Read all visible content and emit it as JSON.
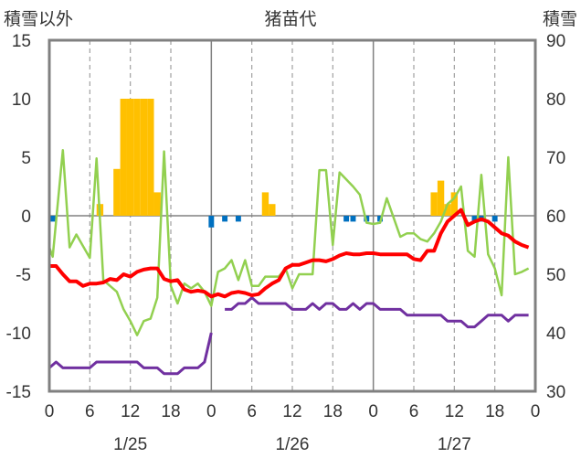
{
  "chart_data": {
    "type": "bar+line",
    "title": "猪苗代",
    "left_axis_label": "積雪以外",
    "right_axis_label": "積雪",
    "left_ylim": [
      -15,
      15
    ],
    "right_ylim": [
      30,
      90
    ],
    "left_ticks": [
      "15",
      "10",
      "5",
      "0",
      "-5",
      "-10",
      "-15"
    ],
    "right_ticks": [
      "90",
      "80",
      "70",
      "60",
      "50",
      "40",
      "30"
    ],
    "x_hour_range": [
      0,
      72
    ],
    "x_tick_labels": [
      "0",
      "6",
      "12",
      "18",
      "0",
      "6",
      "12",
      "18",
      "0",
      "6",
      "12",
      "18",
      "0"
    ],
    "date_labels": [
      "1/25",
      "1/26",
      "1/27"
    ],
    "grid": "dashed vertical at 6h, solid at day boundaries",
    "colors": {
      "snowfall": "#ffc000",
      "precip": "#0070c0",
      "temperature": "#ff0000",
      "wind": "#92d050",
      "snow_depth": "#7030a0",
      "frame": "#808080"
    },
    "snowfall_bars": [
      {
        "h": 7.5,
        "v": 1
      },
      {
        "h": 10,
        "v": 4
      },
      {
        "h": 11,
        "v": 10
      },
      {
        "h": 12,
        "v": 10
      },
      {
        "h": 13,
        "v": 10
      },
      {
        "h": 14,
        "v": 10
      },
      {
        "h": 15,
        "v": 10
      },
      {
        "h": 16,
        "v": 2
      },
      {
        "h": 32,
        "v": 2
      },
      {
        "h": 33,
        "v": 1
      },
      {
        "h": 57,
        "v": 2
      },
      {
        "h": 58,
        "v": 3
      },
      {
        "h": 59,
        "v": 1
      },
      {
        "h": 60,
        "v": 2
      }
    ],
    "precip_bars": [
      {
        "h": 0.5,
        "v": -0.5
      },
      {
        "h": 24,
        "v": -1
      },
      {
        "h": 26,
        "v": -0.5
      },
      {
        "h": 28,
        "v": -0.5
      },
      {
        "h": 44,
        "v": -0.5
      },
      {
        "h": 45,
        "v": -0.5
      },
      {
        "h": 47,
        "v": -0.5
      },
      {
        "h": 49,
        "v": -0.5
      },
      {
        "h": 63,
        "v": -0.5
      },
      {
        "h": 64,
        "v": -0.5
      },
      {
        "h": 66,
        "v": -0.5
      }
    ],
    "temperature": [
      [
        0,
        -4.3
      ],
      [
        1,
        -4.3
      ],
      [
        2,
        -5
      ],
      [
        3,
        -5.6
      ],
      [
        4,
        -5.6
      ],
      [
        5,
        -6
      ],
      [
        6,
        -5.8
      ],
      [
        7,
        -5.8
      ],
      [
        8,
        -5.7
      ],
      [
        9,
        -5.4
      ],
      [
        10,
        -5.5
      ],
      [
        11,
        -5
      ],
      [
        12,
        -5.2
      ],
      [
        13,
        -4.8
      ],
      [
        14,
        -4.6
      ],
      [
        15,
        -4.5
      ],
      [
        16,
        -4.5
      ],
      [
        17,
        -5.4
      ],
      [
        18,
        -5.6
      ],
      [
        19,
        -5.5
      ],
      [
        20,
        -6.3
      ],
      [
        21,
        -6.5
      ],
      [
        22,
        -6.4
      ],
      [
        23,
        -6.5
      ],
      [
        24,
        -6.9
      ],
      [
        25,
        -6.7
      ],
      [
        26,
        -6.9
      ],
      [
        27,
        -6.6
      ],
      [
        28,
        -6.5
      ],
      [
        29,
        -6.6
      ],
      [
        30,
        -6.8
      ],
      [
        31,
        -6.7
      ],
      [
        32,
        -6.2
      ],
      [
        33,
        -5.8
      ],
      [
        34,
        -5.5
      ],
      [
        35,
        -4.5
      ],
      [
        36,
        -4.2
      ],
      [
        37,
        -4.2
      ],
      [
        38,
        -4
      ],
      [
        39,
        -3.8
      ],
      [
        40,
        -3.8
      ],
      [
        41,
        -3.9
      ],
      [
        42,
        -3.7
      ],
      [
        43,
        -3.4
      ],
      [
        44,
        -3.2
      ],
      [
        45,
        -3.3
      ],
      [
        46,
        -3.3
      ],
      [
        47,
        -3.2
      ],
      [
        48,
        -3.2
      ],
      [
        49,
        -3.3
      ],
      [
        50,
        -3.3
      ],
      [
        51,
        -3.3
      ],
      [
        52,
        -3.3
      ],
      [
        53,
        -3.3
      ],
      [
        54,
        -3.7
      ],
      [
        55,
        -3.8
      ],
      [
        56,
        -3
      ],
      [
        57,
        -3
      ],
      [
        58,
        -1.5
      ],
      [
        59,
        -0.5
      ],
      [
        60,
        0
      ],
      [
        61,
        0.5
      ],
      [
        62,
        -0.8
      ],
      [
        63,
        -0.5
      ],
      [
        64,
        -0.3
      ],
      [
        65,
        -0.5
      ],
      [
        66,
        -1
      ],
      [
        67,
        -1.5
      ],
      [
        68,
        -1.7
      ],
      [
        69,
        -2.2
      ],
      [
        70,
        -2.5
      ],
      [
        71,
        -2.7
      ]
    ],
    "wind": [
      [
        0,
        -2.7
      ],
      [
        0.5,
        -3.5
      ],
      [
        2,
        5.6
      ],
      [
        3,
        -2.7
      ],
      [
        4,
        -1.6
      ],
      [
        6,
        -3.6
      ],
      [
        7,
        4.9
      ],
      [
        8,
        -5.5
      ],
      [
        9,
        -6
      ],
      [
        10,
        -6.5
      ],
      [
        11,
        -8
      ],
      [
        12,
        -9
      ],
      [
        13,
        -10.2
      ],
      [
        14,
        -9
      ],
      [
        15,
        -8.8
      ],
      [
        16,
        -7
      ],
      [
        17,
        5.5
      ],
      [
        18,
        -6
      ],
      [
        19,
        -7.5
      ],
      [
        20,
        -5.8
      ],
      [
        21,
        -6.2
      ],
      [
        22,
        -5.8
      ],
      [
        23,
        -6.5
      ],
      [
        24,
        -7.7
      ],
      [
        25,
        -4.8
      ],
      [
        26,
        -4.5
      ],
      [
        27,
        -3.8
      ],
      [
        28,
        -5.5
      ],
      [
        29,
        -3.8
      ],
      [
        30,
        -6
      ],
      [
        31,
        -6
      ],
      [
        32,
        -5.2
      ],
      [
        33,
        -5.2
      ],
      [
        34,
        -5.2
      ],
      [
        35,
        -4.5
      ],
      [
        36,
        -6.2
      ],
      [
        37,
        -5
      ],
      [
        38,
        -5
      ],
      [
        39,
        -5
      ],
      [
        40,
        3.9
      ],
      [
        41,
        3.9
      ],
      [
        42,
        -2.5
      ],
      [
        43,
        3.7
      ],
      [
        45,
        2.5
      ],
      [
        46,
        1.8
      ],
      [
        47,
        -0.6
      ],
      [
        48,
        -0.7
      ],
      [
        49,
        -0.6
      ],
      [
        50,
        1.5
      ],
      [
        52,
        -1.8
      ],
      [
        53,
        -1.5
      ],
      [
        54,
        -1.5
      ],
      [
        55,
        -2
      ],
      [
        56,
        -2.2
      ],
      [
        57,
        -1.5
      ],
      [
        58,
        -0.5
      ],
      [
        59,
        1
      ],
      [
        60,
        1.5
      ],
      [
        61,
        2.5
      ],
      [
        62,
        -3
      ],
      [
        63,
        -3.5
      ],
      [
        64,
        3.5
      ],
      [
        65,
        -3.3
      ],
      [
        66,
        -4.5
      ],
      [
        67,
        -6.8
      ],
      [
        68,
        5
      ],
      [
        69,
        -5
      ],
      [
        70,
        -4.8
      ],
      [
        71,
        -4.5
      ]
    ],
    "snow_depth": [
      [
        0,
        34
      ],
      [
        1,
        35
      ],
      [
        2,
        34
      ],
      [
        3,
        34
      ],
      [
        4,
        34
      ],
      [
        5,
        34
      ],
      [
        6,
        34
      ],
      [
        7,
        35
      ],
      [
        8,
        35
      ],
      [
        9,
        35
      ],
      [
        10,
        35
      ],
      [
        11,
        35
      ],
      [
        12,
        35
      ],
      [
        13,
        35
      ],
      [
        14,
        34
      ],
      [
        15,
        34
      ],
      [
        16,
        34
      ],
      [
        17,
        33
      ],
      [
        18,
        33
      ],
      [
        19,
        33
      ],
      [
        20,
        34
      ],
      [
        21,
        34
      ],
      [
        22,
        34
      ],
      [
        23,
        35
      ],
      [
        24,
        40
      ],
      [
        26,
        44
      ],
      [
        27,
        44
      ],
      [
        28,
        45
      ],
      [
        29,
        45
      ],
      [
        30,
        46
      ],
      [
        31,
        45
      ],
      [
        32,
        45
      ],
      [
        33,
        45
      ],
      [
        34,
        45
      ],
      [
        35,
        45
      ],
      [
        36,
        44
      ],
      [
        37,
        44
      ],
      [
        38,
        44
      ],
      [
        39,
        45
      ],
      [
        40,
        44
      ],
      [
        41,
        45
      ],
      [
        42,
        45
      ],
      [
        43,
        44
      ],
      [
        44,
        44
      ],
      [
        45,
        45
      ],
      [
        46,
        44
      ],
      [
        47,
        45
      ],
      [
        48,
        45
      ],
      [
        49,
        44
      ],
      [
        50,
        44
      ],
      [
        51,
        44
      ],
      [
        52,
        44
      ],
      [
        53,
        43
      ],
      [
        54,
        43
      ],
      [
        55,
        43
      ],
      [
        56,
        43
      ],
      [
        57,
        43
      ],
      [
        58,
        43
      ],
      [
        59,
        42
      ],
      [
        60,
        42
      ],
      [
        61,
        42
      ],
      [
        62,
        41
      ],
      [
        63,
        41
      ],
      [
        64,
        42
      ],
      [
        65,
        43
      ],
      [
        66,
        43
      ],
      [
        67,
        43
      ],
      [
        68,
        42
      ],
      [
        69,
        43
      ],
      [
        70,
        43
      ],
      [
        71,
        43
      ]
    ]
  }
}
